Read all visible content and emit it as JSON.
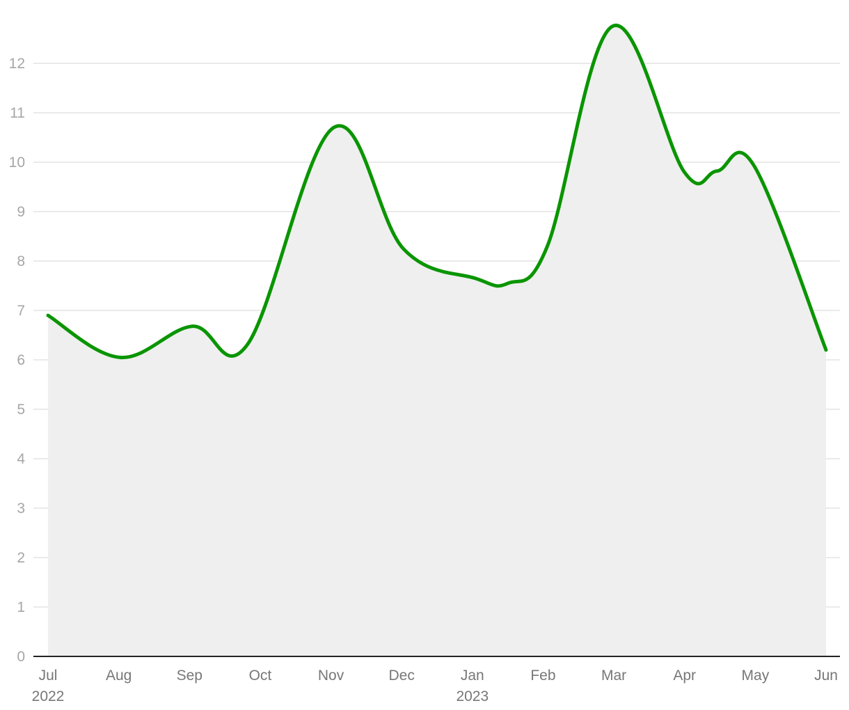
{
  "chart_data": {
    "type": "area",
    "title": "",
    "xlabel": "",
    "ylabel": "",
    "x": [
      "Jul",
      "Aug",
      "Sep",
      "Oct",
      "Nov",
      "Dec",
      "Jan",
      "Feb",
      "Mar",
      "Apr",
      "May",
      "Jun"
    ],
    "years": [
      {
        "label": "2022",
        "at": "Jul"
      },
      {
        "label": "2023",
        "at": "Jan"
      }
    ],
    "points": [
      {
        "x": "2022-07-01",
        "y": 6.9
      },
      {
        "x": "2022-08-01",
        "y": 6.05
      },
      {
        "x": "2022-09-01",
        "y": 6.68
      },
      {
        "x": "2022-09-25",
        "y": 6.32
      },
      {
        "x": "2022-11-01",
        "y": 10.7
      },
      {
        "x": "2022-12-01",
        "y": 8.25
      },
      {
        "x": "2023-01-01",
        "y": 7.65
      },
      {
        "x": "2023-01-15",
        "y": 7.55
      },
      {
        "x": "2023-02-01",
        "y": 8.3
      },
      {
        "x": "2023-03-01",
        "y": 12.75
      },
      {
        "x": "2023-04-01",
        "y": 9.8
      },
      {
        "x": "2023-04-15",
        "y": 9.82
      },
      {
        "x": "2023-05-01",
        "y": 9.93
      },
      {
        "x": "2023-06-01",
        "y": 6.2
      }
    ],
    "yticks": [
      0,
      1,
      2,
      3,
      4,
      5,
      6,
      7,
      8,
      9,
      10,
      11,
      12
    ],
    "ylim": [
      0,
      13
    ],
    "grid": true,
    "series": [
      {
        "color": "#0a9500",
        "fill": "#efefef"
      }
    ]
  }
}
